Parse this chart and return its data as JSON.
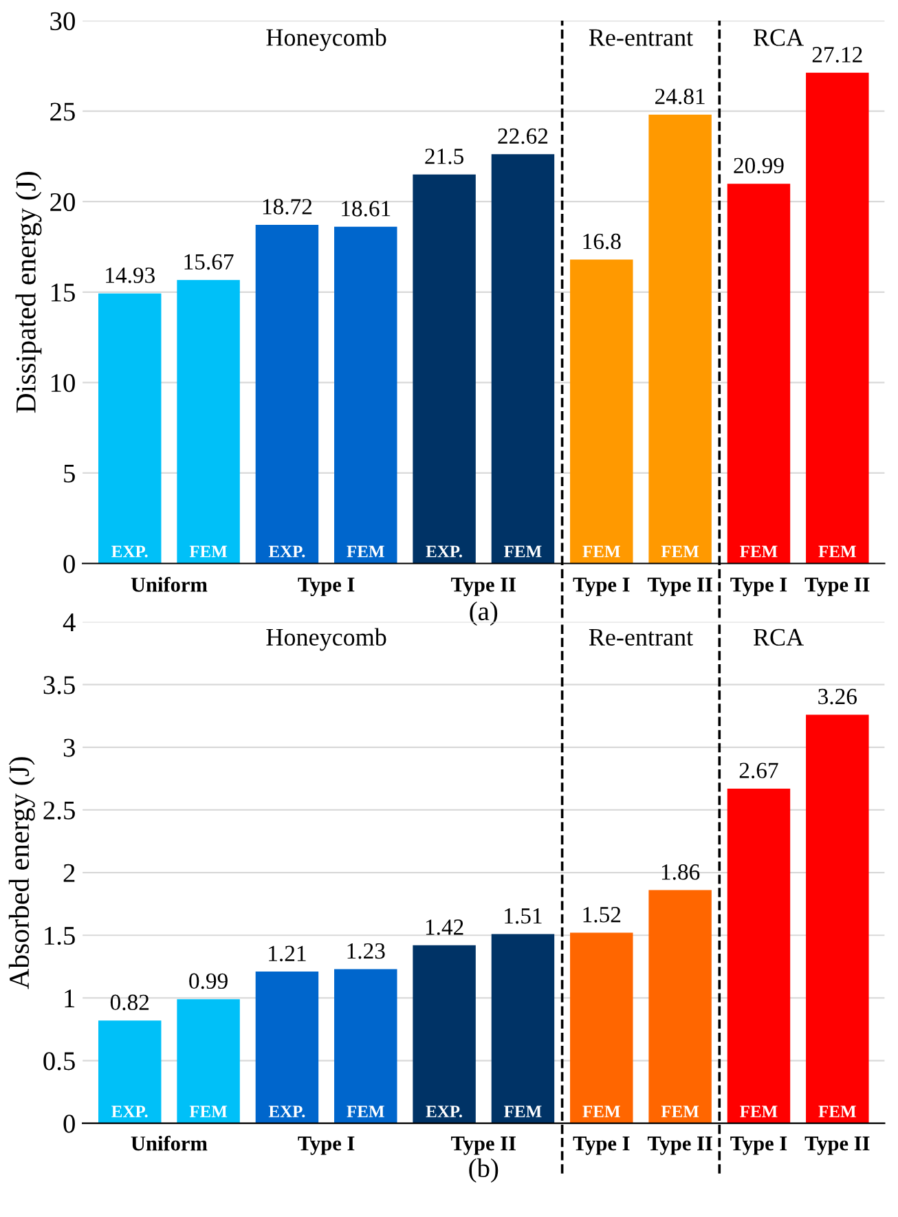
{
  "chart_data": [
    {
      "type": "bar",
      "ylabel": "Dissipated energy (J)",
      "categories": [
        "EXP.",
        "FEM",
        "EXP.",
        "FEM",
        "EXP.",
        "FEM",
        "FEM",
        "FEM",
        "FEM",
        "FEM"
      ],
      "values": [
        14.93,
        15.67,
        18.72,
        18.61,
        21.5,
        22.62,
        16.8,
        24.81,
        20.99,
        27.12
      ],
      "colors": [
        "#00c0f8",
        "#00c0f8",
        "#0066cc",
        "#0066cc",
        "#003366",
        "#003366",
        "#ff9900",
        "#ff9900",
        "#ff0000",
        "#ff0000"
      ],
      "ylim": [
        0,
        30
      ],
      "yticks": [
        0,
        5,
        10,
        15,
        20,
        25,
        30
      ],
      "grid": "y",
      "data_labels": true,
      "annotations": [
        "Honeycomb",
        "Re-entrant",
        "RCA",
        "Uniform",
        "Type I",
        "Type II",
        "Type I",
        "Type II",
        "Type I",
        "Type II",
        "(a)"
      ]
    },
    {
      "type": "bar",
      "ylabel": "Absorbed energy (J)",
      "categories": [
        "EXP.",
        "FEM",
        "EXP.",
        "FEM",
        "EXP.",
        "FEM",
        "FEM",
        "FEM",
        "FEM",
        "FEM"
      ],
      "values": [
        0.82,
        0.99,
        1.21,
        1.23,
        1.42,
        1.51,
        1.52,
        1.86,
        2.67,
        3.26
      ],
      "colors": [
        "#00c0f8",
        "#00c0f8",
        "#0066cc",
        "#0066cc",
        "#003366",
        "#003366",
        "#ff6600",
        "#ff6600",
        "#ff0000",
        "#ff0000"
      ],
      "ylim": [
        0,
        4
      ],
      "yticks": [
        0,
        0.5,
        1,
        1.5,
        2,
        2.5,
        3,
        3.5,
        4
      ],
      "grid": "y",
      "data_labels": true,
      "annotations": [
        "Honeycomb",
        "Re-entrant",
        "RCA",
        "Uniform",
        "Type I",
        "Type II",
        "Type I",
        "Type II",
        "Type I",
        "Type II",
        "(b)"
      ]
    }
  ]
}
